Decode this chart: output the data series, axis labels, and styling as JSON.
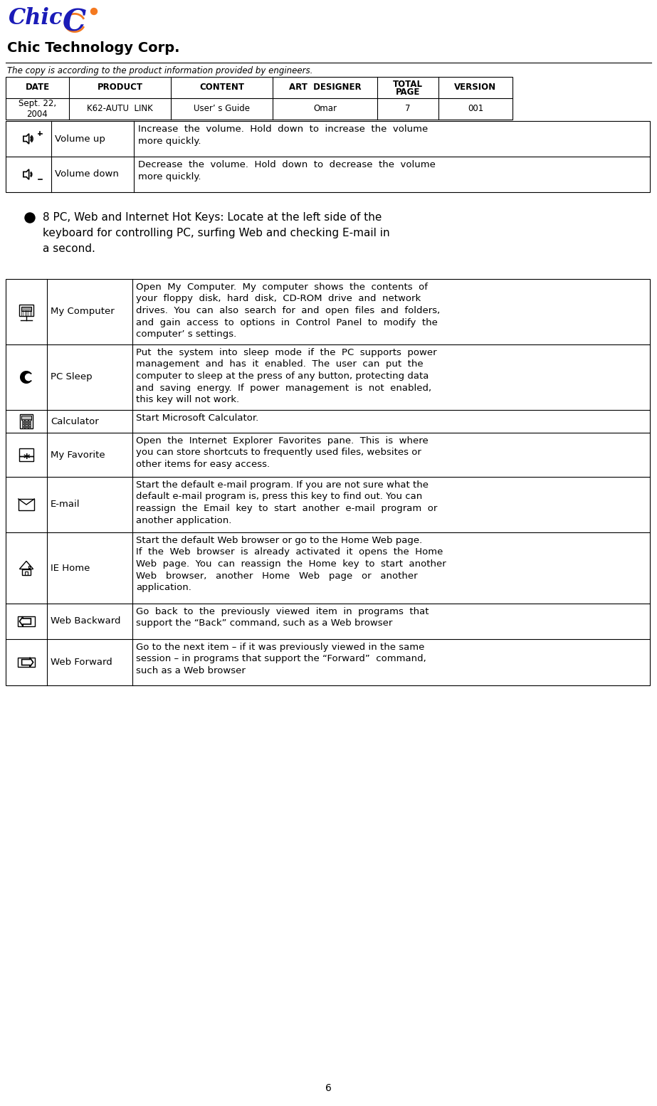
{
  "bg_color": "#ffffff",
  "page_number": "6",
  "disclaimer": "The copy is according to the product information provided by engineers.",
  "header_cols": [
    "DATE",
    "PRODUCT",
    "CONTENT",
    "ART  DESIGNER",
    "TOTAL\nPAGE",
    "VERSION"
  ],
  "header_row": [
    "Sept. 22,\n2004",
    "K62-AUTU  LINK",
    "User’ s Guide",
    "Omar",
    "7",
    "001"
  ],
  "volume_rows": [
    {
      "icon": "vol_up",
      "label": "Volume up",
      "desc": "Increase  the  volume.  Hold  down  to  increase  the  volume\nmore quickly."
    },
    {
      "icon": "vol_down",
      "label": "Volume down",
      "desc": "Decrease  the  volume.  Hold  down  to  decrease  the  volume\nmore quickly."
    }
  ],
  "bullet_text_lines": [
    "8 PC, Web and Internet Hot Keys: Locate at the left side of the",
    "keyboard for controlling PC, surfing Web and checking E-mail in",
    "a second."
  ],
  "main_rows": [
    {
      "icon": "computer",
      "label": "My Computer",
      "desc": "Open  My  Computer.  My  computer  shows  the  contents  of\nyour  floppy  disk,  hard  disk,  CD-ROM  drive  and  network\ndrives.  You  can  also  search  for  and  open  files  and  folders,\nand  gain  access  to  options  in  Control  Panel  to  modify  the\ncomputer’ s settings."
    },
    {
      "icon": "sleep",
      "label": "PC Sleep",
      "desc": "Put  the  system  into  sleep  mode  if  the  PC  supports  power\nmanagement  and  has  it  enabled.  The  user  can  put  the\ncomputer to sleep at the press of any button, protecting data\nand  saving  energy.  If  power  management  is  not  enabled,\nthis key will not work."
    },
    {
      "icon": "calculator",
      "label": "Calculator",
      "desc": "Start Microsoft Calculator."
    },
    {
      "icon": "favorite",
      "label": "My Favorite",
      "desc": "Open  the  Internet  Explorer  Favorites  pane.  This  is  where\nyou can store shortcuts to frequently used files, websites or\nother items for easy access."
    },
    {
      "icon": "email",
      "label": "E-mail",
      "desc": "Start the default e-mail program. If you are not sure what the\ndefault e-mail program is, press this key to find out. You can\nreassign  the  Email  key  to  start  another  e-mail  program  or\nanother application."
    },
    {
      "icon": "home",
      "label": "IE Home",
      "desc": "Start the default Web browser or go to the Home Web page.\nIf  the  Web  browser  is  already  activated  it  opens  the  Home\nWeb  page.  You  can  reassign  the  Home  key  to  start  another\nWeb   browser,   another   Home   Web   page   or   another\napplication."
    },
    {
      "icon": "back",
      "label": "Web Backward",
      "desc": "Go  back  to  the  previously  viewed  item  in  programs  that\nsupport the “Back” command, such as a Web browser"
    },
    {
      "icon": "forward",
      "label": "Web Forward",
      "desc": "Go to the next item – if it was previously viewed in the same\nsession – in programs that support the “Forward”  command,\nsuch as a Web browser"
    }
  ],
  "main_row_heights": [
    92,
    92,
    32,
    62,
    78,
    100,
    50,
    65
  ]
}
